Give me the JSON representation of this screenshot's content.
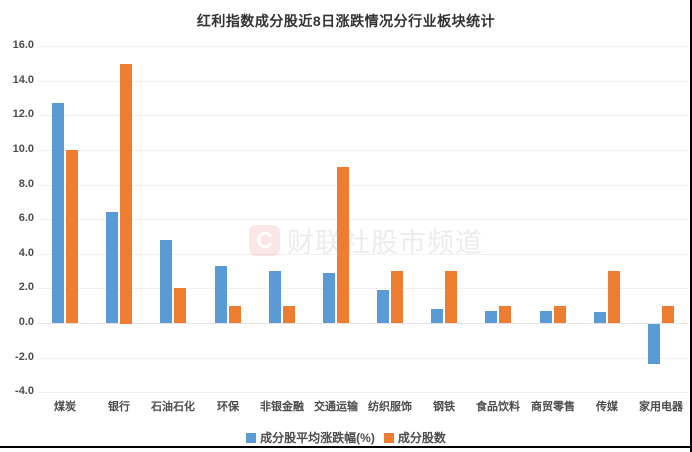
{
  "title": "红利指数成分股近8日涨跌情况分行业板块统计",
  "watermark": {
    "logo_letter": "C",
    "text": "财联社股市频道"
  },
  "legend": {
    "items": [
      {
        "label": "成分股平均涨跌幅(%)",
        "color": "#5B9BD5"
      },
      {
        "label": "成分股数",
        "color": "#ED7D31"
      }
    ]
  },
  "chart_data": {
    "type": "bar",
    "title": "红利指数成分股近8日涨跌情况分行业板块统计",
    "categories": [
      "煤炭",
      "银行",
      "石油石化",
      "环保",
      "非银金融",
      "交通运输",
      "纺织服饰",
      "钢铁",
      "食品饮料",
      "商贸零售",
      "传媒",
      "家用电器"
    ],
    "series": [
      {
        "name": "成分股平均涨跌幅(%)",
        "color": "#5B9BD5",
        "values": [
          12.7,
          6.4,
          4.8,
          3.3,
          3.0,
          2.9,
          1.9,
          0.8,
          0.7,
          0.7,
          0.65,
          -2.3
        ]
      },
      {
        "name": "成分股数",
        "color": "#ED7D31",
        "values": [
          10,
          15,
          2,
          1,
          1,
          9,
          3,
          3,
          1,
          1,
          3,
          1
        ]
      }
    ],
    "xlabel": "",
    "ylabel": "",
    "ylim": [
      -4,
      16
    ],
    "ytick_step": 2,
    "ytick_labels": [
      "16.0",
      "14.0",
      "12.0",
      "10.0",
      "8.0",
      "6.0",
      "4.0",
      "2.0",
      "0.0",
      "-2.0",
      "-4.0"
    ],
    "grid": true,
    "legend_position": "bottom"
  },
  "colors": {
    "background": "#ffffff",
    "grid": "#f1f1f1",
    "zero_line": "#e4e4e4",
    "axis_text": "#4d4d4d",
    "title_text": "#333333",
    "watermark_text": "#ececec",
    "bar_blue": "#5B9BD5",
    "bar_orange": "#ED7D31"
  }
}
